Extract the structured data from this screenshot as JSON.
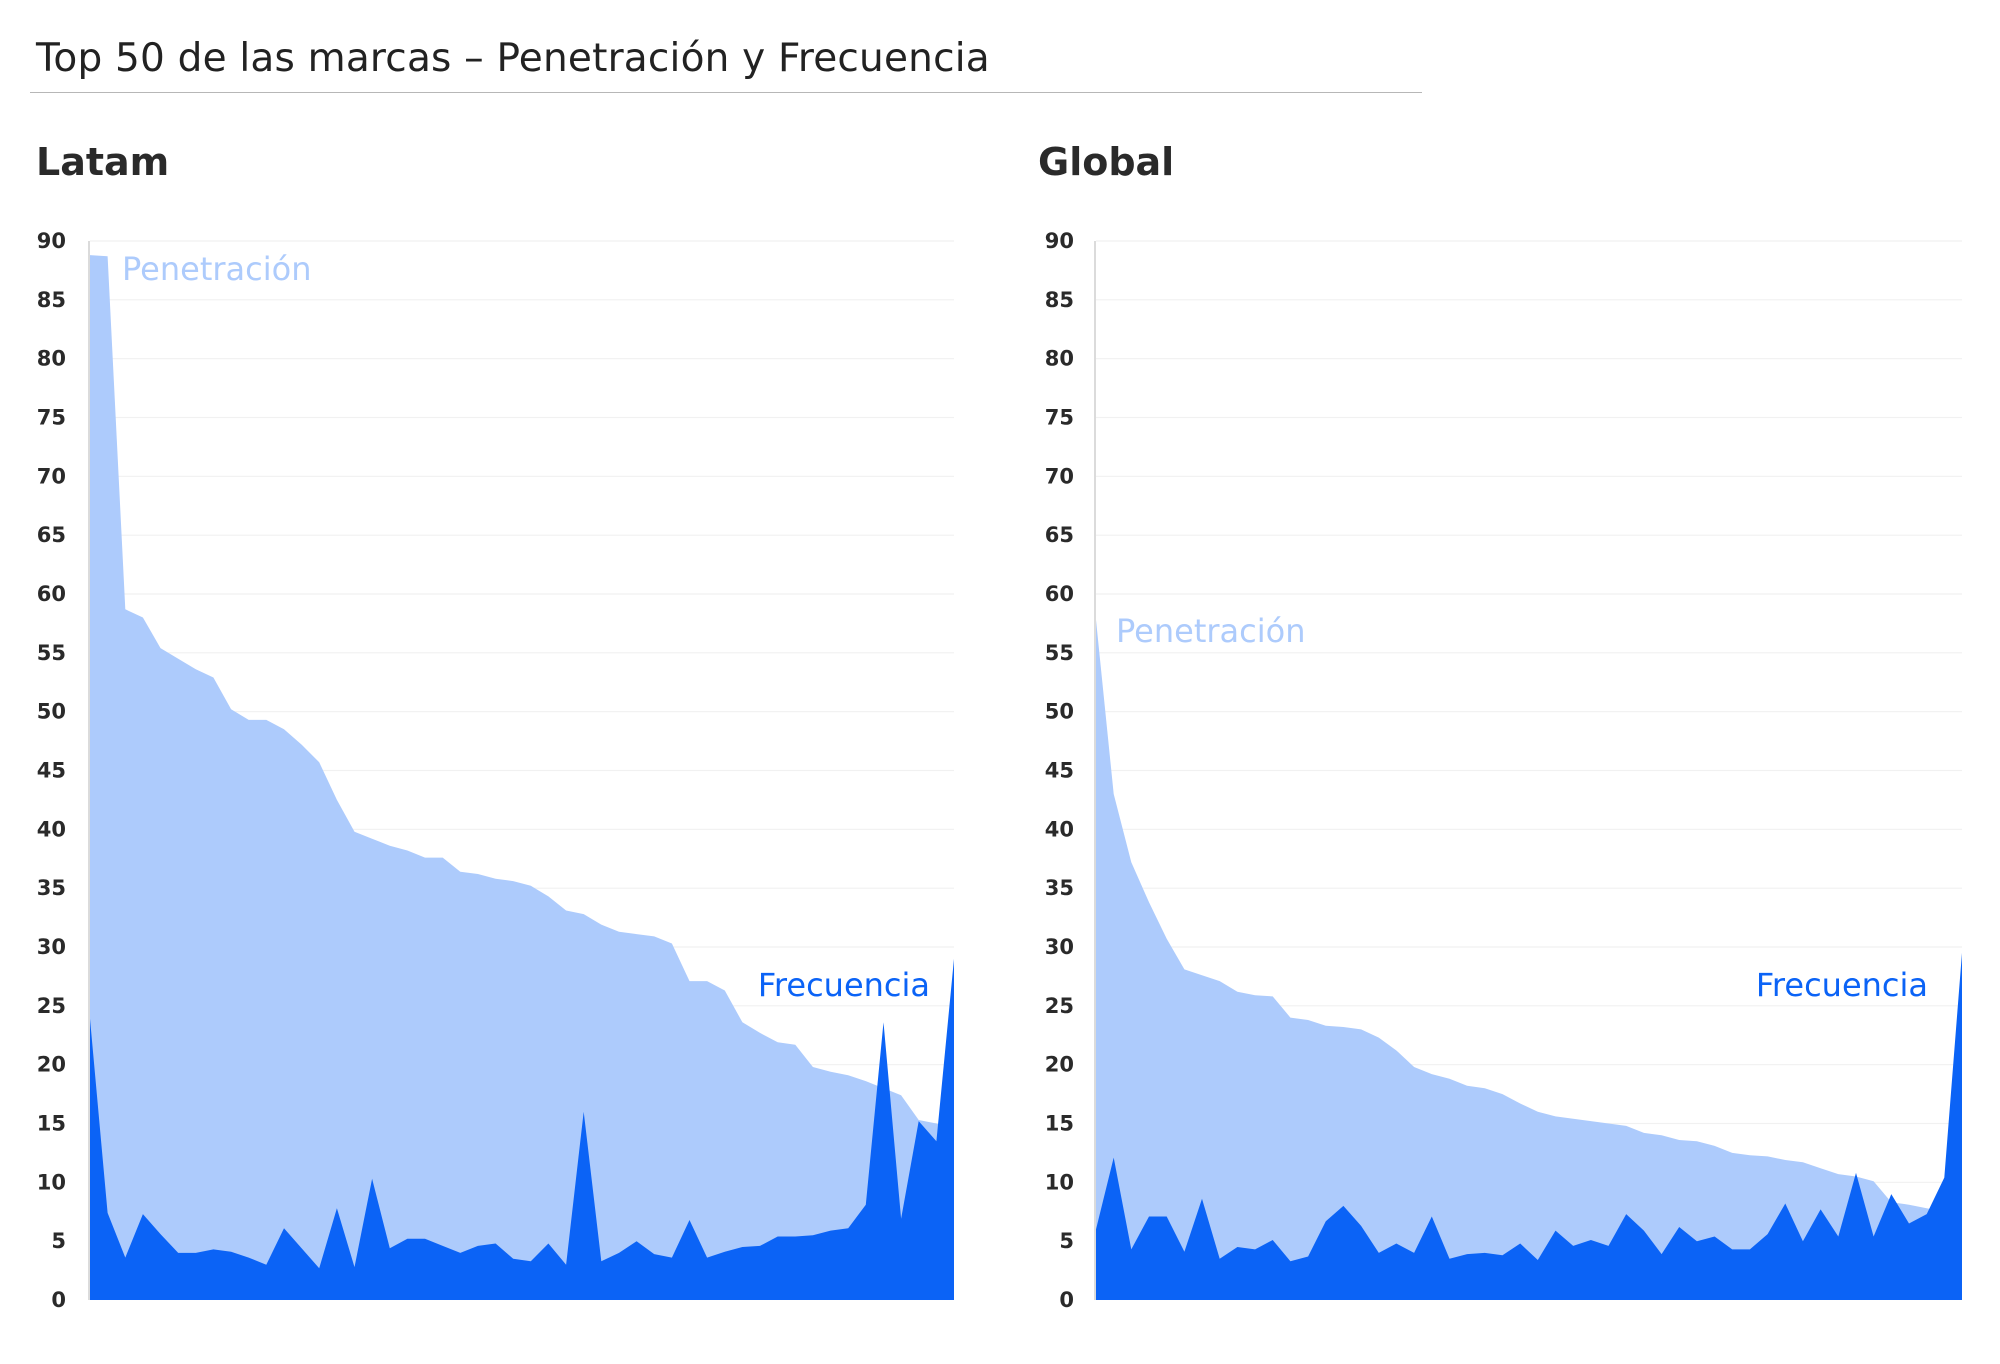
{
  "title": "Top 50 de las marcas – Penetración y Frecuencia",
  "colors": {
    "penetration": "#adcbfc",
    "frequency": "#0b63f6",
    "axis": "#cfcfcf",
    "grid": "#f1f1f1"
  },
  "chart_data": [
    {
      "type": "area",
      "title": "Latam",
      "ylim": [
        0,
        90
      ],
      "yticks": [
        "0",
        "5",
        "10",
        "15",
        "20",
        "25",
        "30",
        "35",
        "40",
        "45",
        "50",
        "55",
        "60",
        "65",
        "70",
        "75",
        "80",
        "85",
        "90"
      ],
      "x": [
        1,
        2,
        3,
        4,
        5,
        6,
        7,
        8,
        9,
        10,
        11,
        12,
        13,
        14,
        15,
        16,
        17,
        18,
        19,
        20,
        21,
        22,
        23,
        24,
        25,
        26,
        27,
        28,
        29,
        30,
        31,
        32,
        33,
        34,
        35,
        36,
        37,
        38,
        39,
        40,
        41,
        42,
        43,
        44,
        45,
        46,
        47,
        48,
        49,
        50
      ],
      "series": [
        {
          "name": "Penetración",
          "values": [
            88.8,
            88.7,
            58.7,
            58.0,
            55.4,
            54.5,
            53.6,
            52.9,
            50.2,
            49.3,
            49.3,
            48.5,
            47.2,
            45.7,
            42.5,
            39.8,
            39.2,
            38.6,
            38.2,
            37.6,
            37.6,
            36.4,
            36.2,
            35.8,
            35.6,
            35.2,
            34.3,
            33.1,
            32.8,
            31.9,
            31.3,
            31.1,
            30.9,
            30.3,
            27.1,
            27.1,
            26.3,
            23.6,
            22.7,
            21.9,
            21.7,
            19.8,
            19.4,
            19.1,
            18.6,
            18.0,
            17.4,
            15.3,
            15.0,
            14.6
          ]
        },
        {
          "name": "Frecuencia",
          "values": [
            23.9,
            7.4,
            3.6,
            7.3,
            5.6,
            4.0,
            4.0,
            4.3,
            4.1,
            3.6,
            3.0,
            6.1,
            4.4,
            2.7,
            7.8,
            2.8,
            10.3,
            4.4,
            5.2,
            5.2,
            4.6,
            4.0,
            4.6,
            4.8,
            3.5,
            3.3,
            4.8,
            3.0,
            16.0,
            3.3,
            4.0,
            5.0,
            3.9,
            3.6,
            6.8,
            3.6,
            4.1,
            4.5,
            4.6,
            5.4,
            5.4,
            5.5,
            5.9,
            6.1,
            8.1,
            23.6,
            6.9,
            15.2,
            13.5,
            29.0
          ]
        }
      ]
    },
    {
      "type": "area",
      "title": "Global",
      "ylim": [
        0,
        90
      ],
      "yticks": [
        "0",
        "5",
        "10",
        "15",
        "20",
        "25",
        "30",
        "35",
        "40",
        "45",
        "50",
        "55",
        "60",
        "65",
        "70",
        "75",
        "80",
        "85",
        "90"
      ],
      "x": [
        1,
        2,
        3,
        4,
        5,
        6,
        7,
        8,
        9,
        10,
        11,
        12,
        13,
        14,
        15,
        16,
        17,
        18,
        19,
        20,
        21,
        22,
        23,
        24,
        25,
        26,
        27,
        28,
        29,
        30,
        31,
        32,
        33,
        34,
        35,
        36,
        37,
        38,
        39,
        40,
        41,
        42,
        43,
        44,
        45,
        46,
        47,
        48,
        49,
        50
      ],
      "series": [
        {
          "name": "Penetración",
          "values": [
            57.8,
            43.0,
            37.2,
            33.8,
            30.7,
            28.1,
            27.6,
            27.1,
            26.2,
            25.9,
            25.8,
            24.0,
            23.8,
            23.3,
            23.2,
            23.0,
            22.3,
            21.2,
            19.8,
            19.2,
            18.8,
            18.2,
            18.0,
            17.5,
            16.7,
            16.0,
            15.6,
            15.4,
            15.2,
            15.0,
            14.8,
            14.2,
            14.0,
            13.6,
            13.5,
            13.1,
            12.5,
            12.3,
            12.2,
            11.9,
            11.7,
            11.2,
            10.7,
            10.5,
            10.1,
            8.3,
            8.1,
            7.8,
            7.5,
            7.0
          ]
        },
        {
          "name": "Frecuencia",
          "values": [
            6.0,
            12.1,
            4.3,
            7.1,
            7.1,
            4.1,
            8.6,
            3.5,
            4.5,
            4.3,
            5.1,
            3.3,
            3.7,
            6.7,
            8.0,
            6.3,
            4.0,
            4.8,
            4.0,
            7.1,
            3.5,
            3.9,
            4.0,
            3.8,
            4.8,
            3.4,
            5.9,
            4.6,
            5.1,
            4.6,
            7.3,
            5.9,
            3.9,
            6.2,
            5.0,
            5.4,
            4.3,
            4.3,
            5.6,
            8.2,
            5.0,
            7.7,
            5.4,
            10.8,
            5.4,
            9.0,
            6.5,
            7.3,
            10.4,
            29.5
          ]
        }
      ]
    }
  ]
}
